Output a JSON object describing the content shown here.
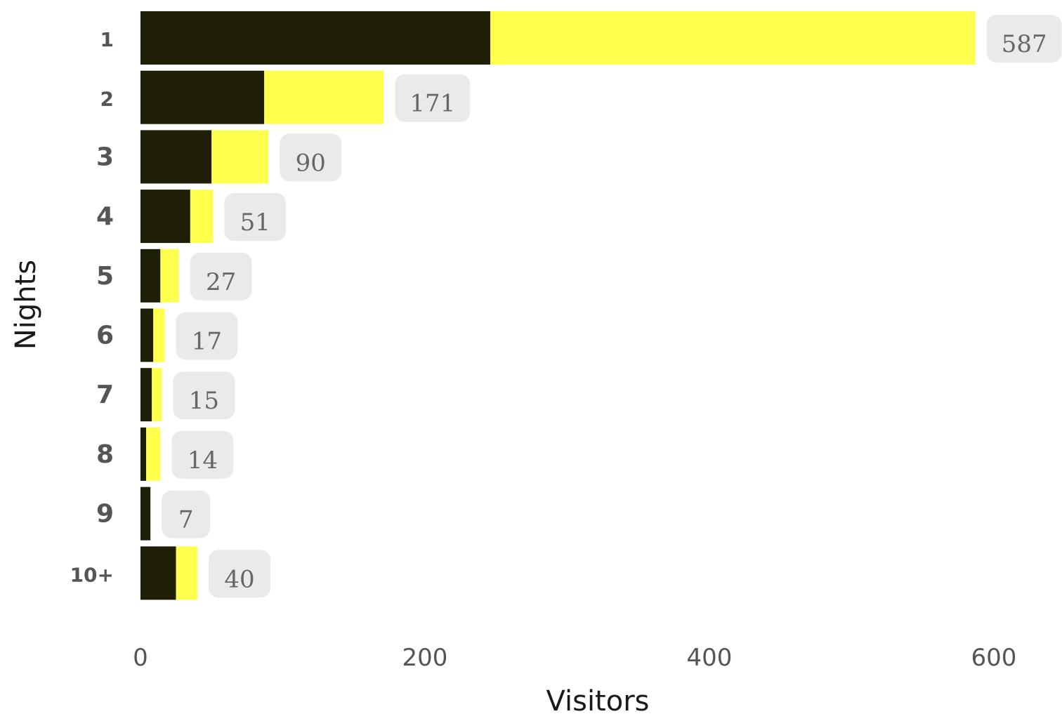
{
  "chart_data": {
    "type": "bar",
    "orientation": "horizontal",
    "stacked": true,
    "xlabel": "Visitors",
    "ylabel": "Nights",
    "xlim": [
      0,
      600
    ],
    "x_ticks": [
      "0",
      "200",
      "400",
      "600"
    ],
    "categories": [
      "1",
      "2",
      "3",
      "4",
      "5",
      "6",
      "7",
      "8",
      "9",
      "10+"
    ],
    "totals": [
      587,
      171,
      90,
      51,
      27,
      17,
      15,
      14,
      7,
      40
    ],
    "series": [
      {
        "values": [
          246,
          87,
          50,
          35,
          14,
          9,
          8,
          4,
          7,
          25
        ],
        "color": "#1f1f08"
      },
      {
        "values": [
          341,
          84,
          40,
          16,
          13,
          8,
          7,
          10,
          0,
          15
        ],
        "color": "#ffff4d"
      }
    ],
    "value_label_background": "#e8e8e8",
    "grid": false
  }
}
